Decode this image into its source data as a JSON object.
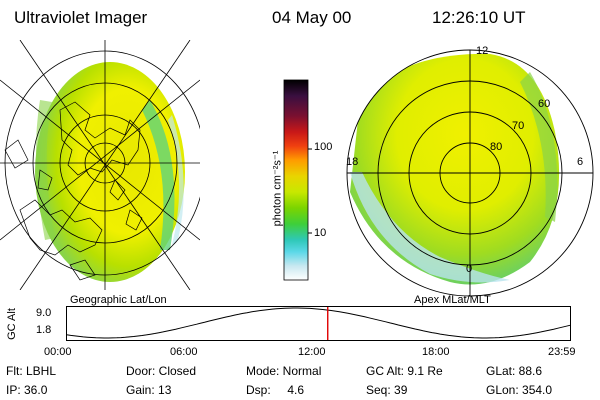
{
  "header": {
    "instrument": "Ultraviolet Imager",
    "date": "04 May 00",
    "time": "12:26:10 UT"
  },
  "left_map": {
    "caption": "Geographic Lat/Lon"
  },
  "right_map": {
    "caption": "Apex MLat/MLT",
    "mlt_labels": {
      "top": "12",
      "left": "18",
      "right": "6",
      "bottom": "0"
    },
    "lat_labels": [
      "60",
      "70",
      "80"
    ]
  },
  "colorbar": {
    "unit_label": "photon cm⁻²s⁻¹",
    "tick_100": "100",
    "tick_10": "10",
    "colors": [
      "#000000",
      "#3a0f40",
      "#7a1030",
      "#c81818",
      "#f04010",
      "#ff9b00",
      "#e9d400",
      "#c8e800",
      "#7bd400",
      "#3ecf3a",
      "#2fc8b8",
      "#5cd8e8",
      "#c8e8f0",
      "#ffffff"
    ]
  },
  "altitude_plot": {
    "ylabel": "GC Alt",
    "ytick_top": "9.0",
    "ytick_bottom": "1.8",
    "xticks": [
      "00:00",
      "06:00",
      "12:00",
      "18:00",
      "23:59"
    ],
    "marker_time_hours": 12.44,
    "marker_color": "#e00000"
  },
  "status": {
    "row1": {
      "flt": "Flt: LBHL",
      "door": "Door: Closed",
      "mode": "Mode: Normal",
      "gcalt": "GC Alt: 9.1 Re",
      "glat": "GLat:  88.6"
    },
    "row2": {
      "ip": "IP: 36.0",
      "gain": "Gain: 13",
      "dsp": "Dsp:     4.6",
      "seq": "Seq: 39",
      "glon": "GLon: 354.0"
    }
  }
}
